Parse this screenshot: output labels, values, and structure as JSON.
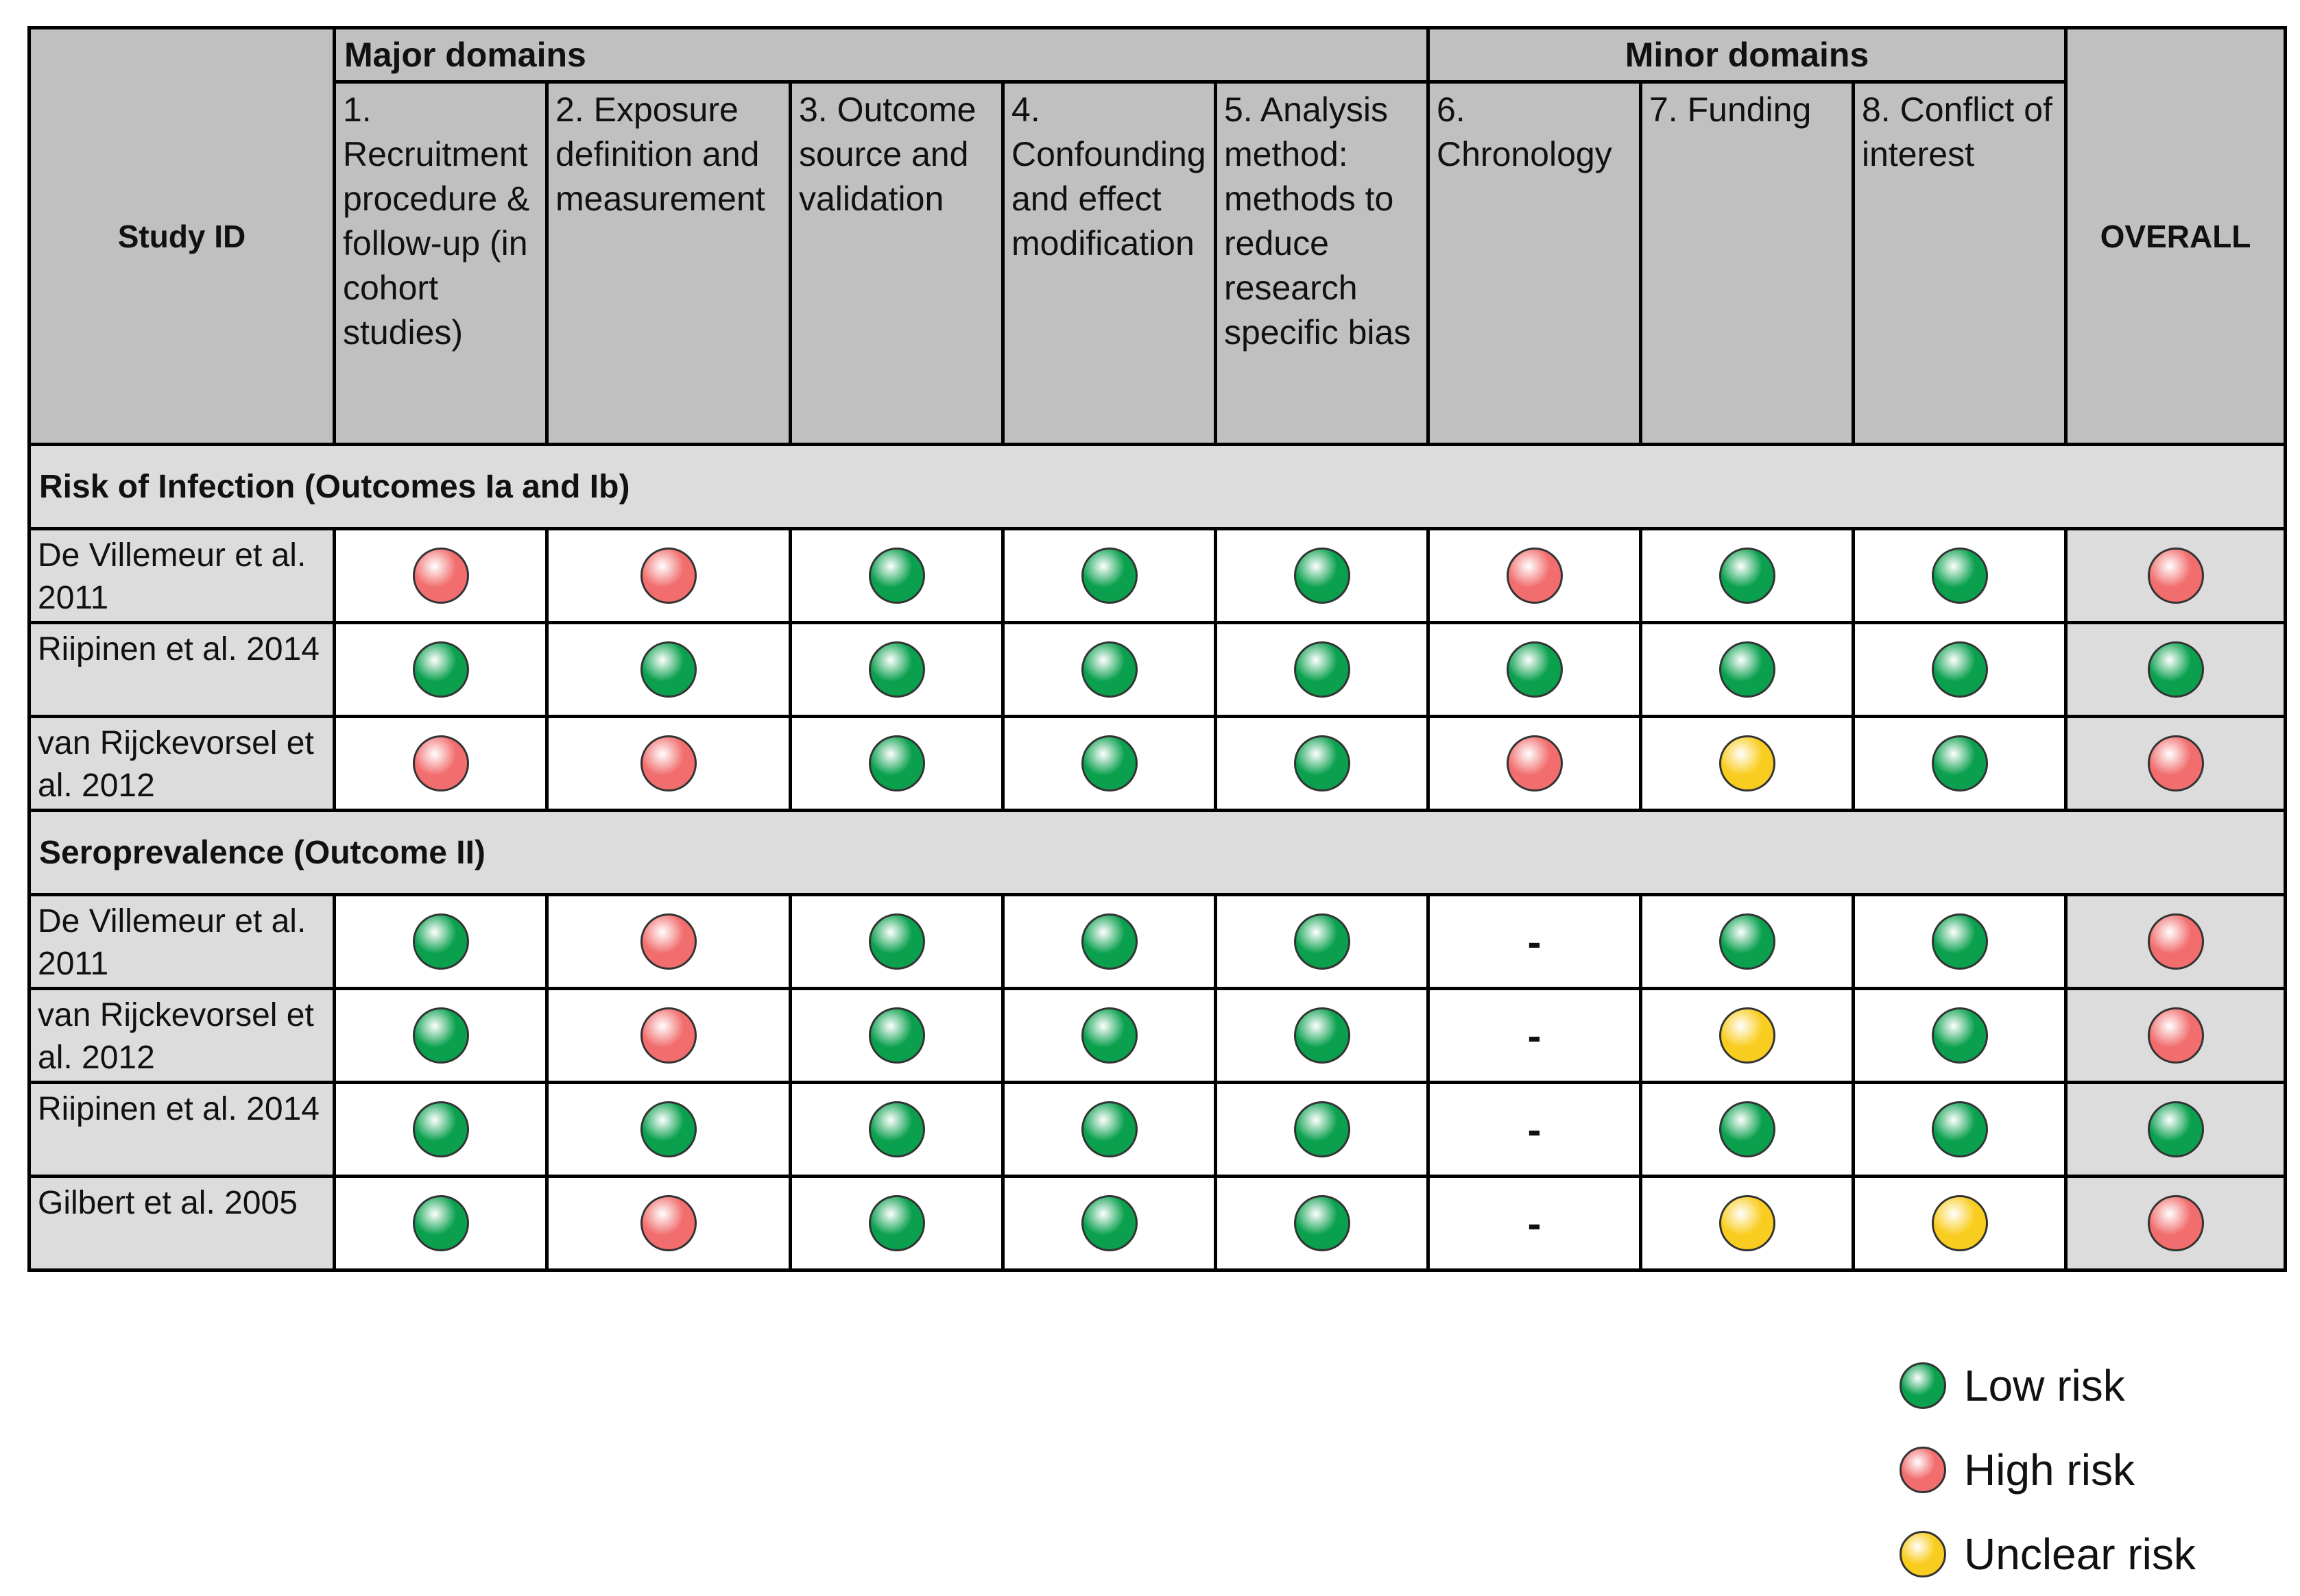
{
  "header": {
    "study_id": "Study ID",
    "major_domains": "Major domains",
    "minor_domains": "Minor domains",
    "overall": "OVERALL",
    "domains": [
      "1. Recruitment procedure & follow-up (in cohort studies)",
      "2. Exposure definition and measurement",
      "3. Outcome source and validation",
      "4. Confounding and effect modification",
      "5. Analysis method: methods to reduce research specific bias",
      "6. Chronology",
      "7. Funding",
      "8. Conflict of interest"
    ]
  },
  "colors": {
    "low": "#0aa04e",
    "high": "#f26d6d",
    "unclear": "#f9cd1f"
  },
  "sections": [
    {
      "title": "Risk of Infection (Outcomes Ia and Ib)",
      "rows": [
        {
          "study": "De Villemeur et al. 2011",
          "ratings": [
            "high",
            "high",
            "low",
            "low",
            "low",
            "high",
            "low",
            "low"
          ],
          "overall": "high"
        },
        {
          "study": "Riipinen et al. 2014",
          "ratings": [
            "low",
            "low",
            "low",
            "low",
            "low",
            "low",
            "low",
            "low"
          ],
          "overall": "low"
        },
        {
          "study": "van Rijckevorsel et al. 2012",
          "ratings": [
            "high",
            "high",
            "low",
            "low",
            "low",
            "high",
            "unclear",
            "low"
          ],
          "overall": "high"
        }
      ]
    },
    {
      "title": "Seroprevalence (Outcome II)",
      "rows": [
        {
          "study": "De Villemeur et al. 2011",
          "ratings": [
            "low",
            "high",
            "low",
            "low",
            "low",
            "-",
            "low",
            "low"
          ],
          "overall": "high"
        },
        {
          "study": "van Rijckevorsel et al. 2012",
          "ratings": [
            "low",
            "high",
            "low",
            "low",
            "low",
            "-",
            "unclear",
            "low"
          ],
          "overall": "high"
        },
        {
          "study": "Riipinen et al. 2014",
          "ratings": [
            "low",
            "low",
            "low",
            "low",
            "low",
            "-",
            "low",
            "low"
          ],
          "overall": "low"
        },
        {
          "study": "Gilbert et al. 2005",
          "ratings": [
            "low",
            "high",
            "low",
            "low",
            "low",
            "-",
            "unclear",
            "unclear"
          ],
          "overall": "high"
        }
      ]
    }
  ],
  "legend": [
    {
      "key": "low",
      "label": "Low risk"
    },
    {
      "key": "high",
      "label": "High risk"
    },
    {
      "key": "unclear",
      "label": "Unclear risk"
    }
  ]
}
